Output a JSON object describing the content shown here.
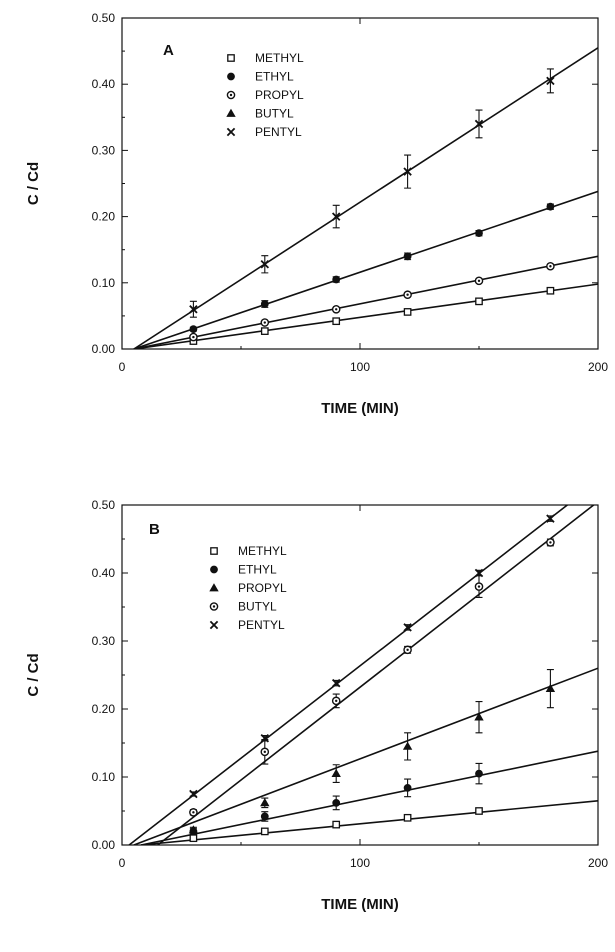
{
  "chart_data": [
    {
      "type": "scatter",
      "panel_label": "A",
      "xlabel": "TIME (MIN)",
      "ylabel": "C / Cd",
      "xlim": [
        0,
        200
      ],
      "ylim": [
        0,
        0.5
      ],
      "x_ticks": [
        0,
        100,
        200
      ],
      "x_tick_labels": [
        "0",
        "100",
        "200"
      ],
      "y_ticks": [
        0,
        0.1,
        0.2,
        0.3,
        0.4,
        0.5
      ],
      "y_tick_labels": [
        "0.00",
        "0.10",
        "0.20",
        "0.30",
        "0.40",
        "0.50"
      ],
      "legend_position": "upper-left",
      "series": [
        {
          "name": "METHYL",
          "marker": "square",
          "x": [
            30,
            60,
            90,
            120,
            150,
            180
          ],
          "y": [
            0.012,
            0.027,
            0.042,
            0.056,
            0.072,
            0.088
          ],
          "err": [
            0,
            0,
            0,
            0,
            0,
            0
          ],
          "fit": {
            "x": [
              5,
              200
            ],
            "y": [
              0.0,
              0.098
            ]
          }
        },
        {
          "name": "ETHYL",
          "marker": "filled-circle",
          "x": [
            30,
            60,
            90,
            120,
            150,
            180
          ],
          "y": [
            0.03,
            0.068,
            0.105,
            0.14,
            0.175,
            0.215
          ],
          "err": [
            0.003,
            0.005,
            0.004,
            0.005,
            0.004,
            0.004
          ],
          "fit": {
            "x": [
              5,
              200
            ],
            "y": [
              0.0,
              0.238
            ]
          }
        },
        {
          "name": "PROPYL",
          "marker": "circle-dot",
          "x": [
            30,
            60,
            90,
            120,
            150,
            180
          ],
          "y": [
            0.018,
            0.04,
            0.06,
            0.082,
            0.103,
            0.125
          ],
          "err": [
            0,
            0,
            0,
            0,
            0,
            0
          ],
          "fit": {
            "x": [
              5,
              200
            ],
            "y": [
              0.0,
              0.14
            ]
          }
        },
        {
          "name": "BUTYL",
          "marker": "triangle",
          "x": [],
          "y": [],
          "err": []
        },
        {
          "name": "PENTYL",
          "marker": "cross",
          "x": [
            30,
            60,
            90,
            120,
            150,
            180
          ],
          "y": [
            0.06,
            0.128,
            0.2,
            0.268,
            0.34,
            0.405
          ],
          "err": [
            0.012,
            0.013,
            0.017,
            0.025,
            0.021,
            0.018
          ],
          "fit": {
            "x": [
              5,
              200
            ],
            "y": [
              0.0,
              0.455
            ]
          }
        }
      ]
    },
    {
      "type": "scatter",
      "panel_label": "B",
      "xlabel": "TIME (MIN)",
      "ylabel": "C / Cd",
      "xlim": [
        0,
        200
      ],
      "ylim": [
        0,
        0.5
      ],
      "x_ticks": [
        0,
        100,
        200
      ],
      "x_tick_labels": [
        "0",
        "100",
        "200"
      ],
      "y_ticks": [
        0,
        0.1,
        0.2,
        0.3,
        0.4,
        0.5
      ],
      "y_tick_labels": [
        "0.00",
        "0.10",
        "0.20",
        "0.30",
        "0.40",
        "0.50"
      ],
      "legend_position": "upper-left",
      "series": [
        {
          "name": "METHYL",
          "marker": "square",
          "x": [
            30,
            60,
            90,
            120,
            150
          ],
          "y": [
            0.01,
            0.02,
            0.03,
            0.04,
            0.05
          ],
          "err": [
            0,
            0,
            0,
            0,
            0
          ],
          "fit": {
            "x": [
              8,
              200
            ],
            "y": [
              0.0,
              0.065
            ]
          }
        },
        {
          "name": "ETHYL",
          "marker": "filled-circle",
          "x": [
            30,
            60,
            90,
            120,
            150
          ],
          "y": [
            0.02,
            0.042,
            0.062,
            0.084,
            0.105
          ],
          "err": [
            0.004,
            0.007,
            0.01,
            0.013,
            0.015
          ],
          "fit": {
            "x": [
              8,
              200
            ],
            "y": [
              0.0,
              0.138
            ]
          }
        },
        {
          "name": "PROPYL",
          "marker": "triangle",
          "x": [
            30,
            60,
            90,
            120,
            150,
            180
          ],
          "y": [
            0.022,
            0.062,
            0.105,
            0.145,
            0.188,
            0.23
          ],
          "err": [
            0.004,
            0.007,
            0.013,
            0.02,
            0.023,
            0.028
          ],
          "fit": {
            "x": [
              5,
              200
            ],
            "y": [
              0.0,
              0.26
            ]
          }
        },
        {
          "name": "BUTYL",
          "marker": "circle-dot",
          "x": [
            30,
            60,
            90,
            120,
            150,
            180
          ],
          "y": [
            0.048,
            0.137,
            0.212,
            0.287,
            0.38,
            0.445
          ],
          "err": [
            0.004,
            0.018,
            0.01,
            0.005,
            0.016,
            0.005
          ],
          "fit": {
            "x": [
              15,
              200
            ],
            "y": [
              0.0,
              0.505
            ]
          }
        },
        {
          "name": "PENTYL",
          "marker": "cross",
          "x": [
            30,
            60,
            90,
            120,
            150,
            180
          ],
          "y": [
            0.075,
            0.157,
            0.238,
            0.32,
            0.4,
            0.48
          ],
          "err": [
            0.003,
            0.004,
            0.004,
            0.004,
            0.004,
            0.004
          ],
          "fit": {
            "x": [
              3,
              200
            ],
            "y": [
              0.0,
              0.535
            ]
          }
        }
      ]
    }
  ]
}
